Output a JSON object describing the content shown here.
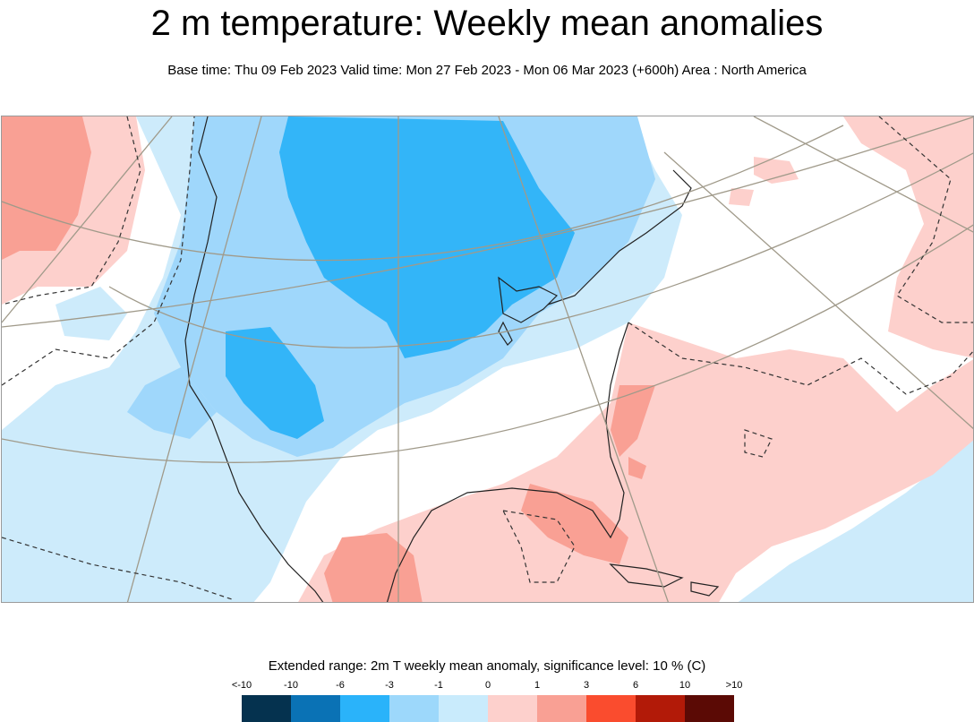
{
  "header": {
    "title": "2 m temperature: Weekly mean anomalies",
    "subtitle": "Base time: Thu 09 Feb 2023 Valid time: Mon 27 Feb 2023 - Mon 06 Mar 2023 (+600h) Area : North America"
  },
  "map": {
    "region": "North America",
    "variable": "2m temperature weekly mean anomaly",
    "features": [
      "coastlines",
      "lakes",
      "graticule",
      "significance contour (dashed)"
    ]
  },
  "legend": {
    "title": "Extended range: 2m T weekly mean anomaly, significance level: 10 % (C)",
    "labels": [
      "<-10",
      "-10",
      "-6",
      "-3",
      "-1",
      "0",
      "1",
      "3",
      "6",
      "10",
      ">10"
    ],
    "colors": [
      "#05324f",
      "#0a72b5",
      "#2ab3fa",
      "#9dd8fb",
      "#c9ebfc",
      "#fdd0cc",
      "#f9a094",
      "#fa4c2e",
      "#b21a08",
      "#5b0a05"
    ]
  }
}
